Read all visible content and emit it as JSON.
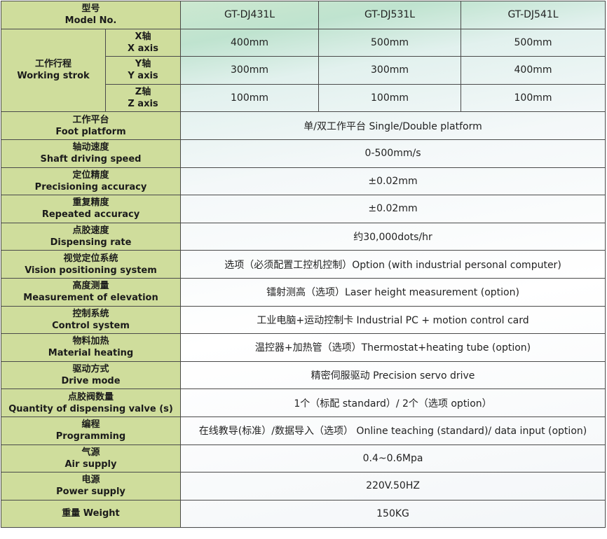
{
  "header": {
    "label_cn": "型号",
    "label_en": "Model No.",
    "models": [
      "GT-DJ431L",
      "GT-DJ531L",
      "GT-DJ541L"
    ]
  },
  "stroke": {
    "label_cn": "工作行程",
    "label_en": "Working strok",
    "axes": [
      {
        "cn": "X轴",
        "en": "X axis",
        "values": [
          "400mm",
          "500mm",
          "500mm"
        ]
      },
      {
        "cn": "Y轴",
        "en": "Y axis",
        "values": [
          "300mm",
          "300mm",
          "400mm"
        ]
      },
      {
        "cn": "Z轴",
        "en": "Z axis",
        "values": [
          "100mm",
          "100mm",
          "100mm"
        ]
      }
    ]
  },
  "rows": [
    {
      "cn": "工作平台",
      "en": "Foot platform",
      "value": "单/双工作平台 Single/Double platform"
    },
    {
      "cn": "轴动速度",
      "en": "Shaft driving speed",
      "value": "0-500mm/s"
    },
    {
      "cn": "定位精度",
      "en": "Precisioning accuracy",
      "value": "±0.02mm"
    },
    {
      "cn": "重复精度",
      "en": "Repeated accuracy",
      "value": "±0.02mm"
    },
    {
      "cn": "点胶速度",
      "en": "Dispensing rate",
      "value": "约30,000dots/hr"
    },
    {
      "cn": "视觉定位系统",
      "en": "Vision positioning system",
      "value": "选项（必须配置工控机控制）Option (with industrial personal computer)"
    },
    {
      "cn": "高度测量",
      "en": "Measurement of elevation",
      "value": "镭射测高（选项）Laser height measurement (option)"
    },
    {
      "cn": "控制系统",
      "en": "Control system",
      "value": "工业电脑+运动控制卡 Industrial PC + motion control card"
    },
    {
      "cn": "物料加热",
      "en": "Material heating",
      "value": "温控器+加热管（选项）Thermostat+heating tube (option)"
    },
    {
      "cn": "驱动方式",
      "en": "Drive mode",
      "value": "精密伺服驱动 Precision servo drive"
    },
    {
      "cn": "点胶阀数量",
      "en": "Quantity of dispensing valve (s)",
      "value": "1个（标配 standard）/ 2个（选项 option）"
    },
    {
      "cn": "编程",
      "en": "Programming",
      "value": "在线教导(标准）/数据导入（选项） Online teaching (standard)/ data input (option)"
    },
    {
      "cn": "气源",
      "en": "Air supply",
      "value": "0.4~0.6Mpa"
    },
    {
      "cn": "电源",
      "en": "Power supply",
      "value": "220V.50HZ"
    },
    {
      "cn": "重量 Weight",
      "en": "",
      "value": "150KG"
    }
  ]
}
